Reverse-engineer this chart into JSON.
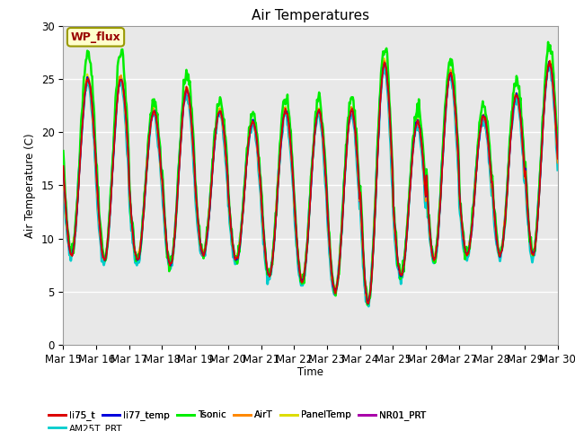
{
  "title": "Air Temperatures",
  "xlabel": "Time",
  "ylabel": "Air Temperature (C)",
  "ylim": [
    0,
    30
  ],
  "n_days": 15,
  "x_tick_labels": [
    "Mar 15",
    "Mar 16",
    "Mar 17",
    "Mar 18",
    "Mar 19",
    "Mar 20",
    "Mar 21",
    "Mar 22",
    "Mar 23",
    "Mar 24",
    "Mar 25",
    "Mar 26",
    "Mar 27",
    "Mar 28",
    "Mar 29",
    "Mar 30"
  ],
  "series": [
    {
      "name": "li75_t",
      "color": "#dd0000"
    },
    {
      "name": "li77_temp",
      "color": "#0000dd"
    },
    {
      "name": "Tsonic",
      "color": "#00ee00"
    },
    {
      "name": "AirT",
      "color": "#ff8800"
    },
    {
      "name": "PanelTemp",
      "color": "#dddd00"
    },
    {
      "name": "NR01_PRT",
      "color": "#aa00aa"
    },
    {
      "name": "AM25T_PRT",
      "color": "#00cccc"
    }
  ],
  "legend_label": "WP_flux",
  "legend_facecolor": "#ffffcc",
  "legend_edgecolor": "#999900",
  "legend_textcolor": "#990000",
  "bg_color": "#e8e8e8",
  "grid_color": "#ffffff",
  "base_min": [
    8.5,
    8.0,
    8.0,
    7.5,
    8.5,
    8.0,
    6.5,
    6.0,
    5.0,
    4.0,
    6.5,
    8.0,
    8.5,
    8.5,
    8.5
  ],
  "base_max": [
    25.0,
    25.0,
    22.0,
    24.0,
    22.0,
    21.0,
    22.0,
    22.0,
    22.0,
    26.5,
    21.0,
    25.5,
    21.5,
    23.5,
    26.5
  ],
  "tsonic_extra": 2.0,
  "pts_per_day": 48
}
